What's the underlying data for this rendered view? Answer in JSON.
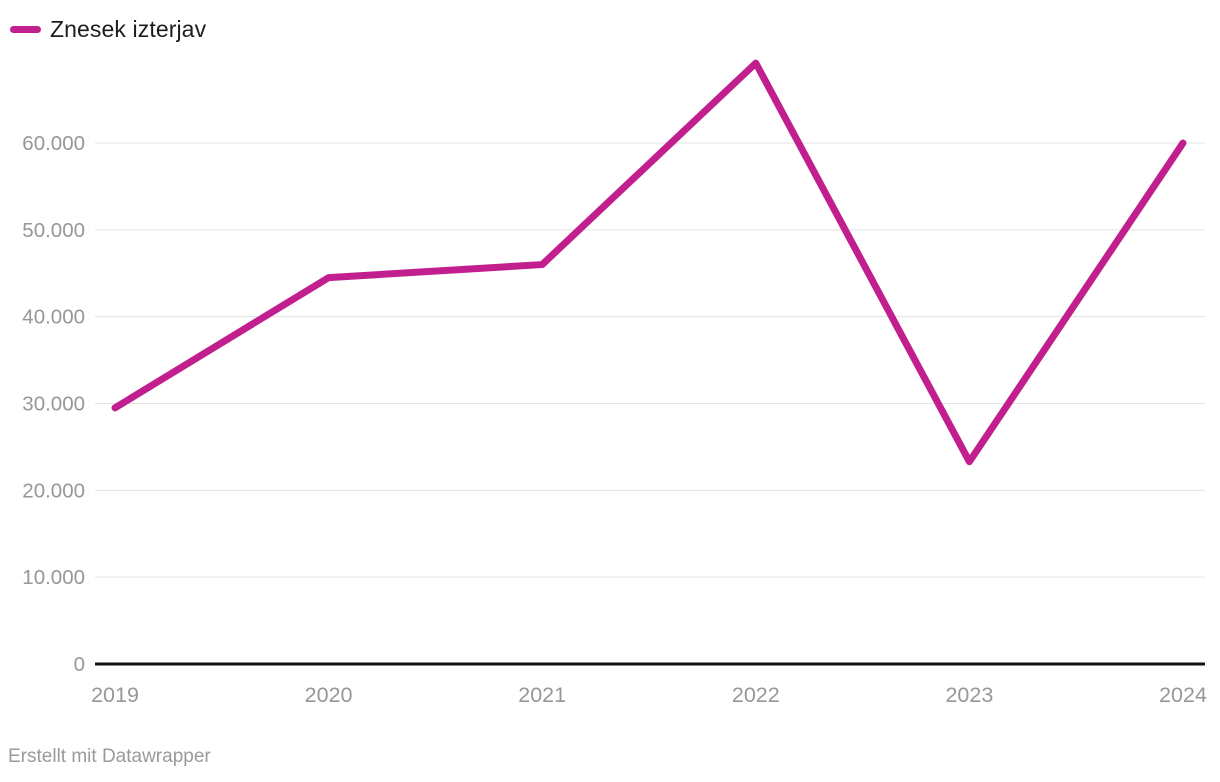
{
  "legend": {
    "label": "Znesek izterjav"
  },
  "footer": {
    "text": "Erstellt mit Datawrapper"
  },
  "chart_data": {
    "type": "line",
    "title": "",
    "xlabel": "",
    "ylabel": "",
    "categories": [
      "2019",
      "2020",
      "2021",
      "2022",
      "2023",
      "2024"
    ],
    "series": [
      {
        "name": "Znesek izterjav",
        "values": [
          29500,
          44500,
          46000,
          69200,
          23300,
          60000
        ]
      }
    ],
    "yticks": [
      {
        "value": 0,
        "label": "0"
      },
      {
        "value": 10000,
        "label": "10.000"
      },
      {
        "value": 20000,
        "label": "20.000"
      },
      {
        "value": 30000,
        "label": "30.000"
      },
      {
        "value": 40000,
        "label": "40.000"
      },
      {
        "value": 50000,
        "label": "50.000"
      },
      {
        "value": 60000,
        "label": "60.000"
      }
    ],
    "ylim": [
      0,
      71500
    ],
    "grid": true,
    "legend_position": "top-left",
    "colors": {
      "line": "#c21f8e",
      "grid": "#e3e3e3",
      "axis": "#121212",
      "tick_label": "#979797",
      "legend_text": "#1d1d1f",
      "footer_text": "#9a9a9a"
    }
  }
}
